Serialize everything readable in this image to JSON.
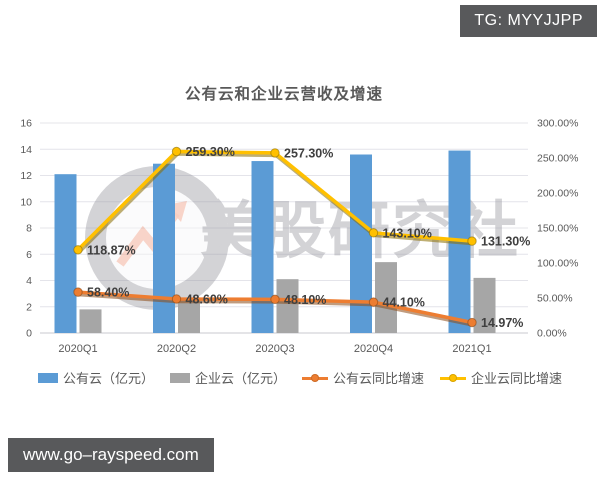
{
  "overlays": {
    "tg_badge": "TG: MYYJJPP",
    "site_badge": "www.go–rayspeed.com"
  },
  "watermark": {
    "text": "美股研究社",
    "color": "#97979f",
    "arrow_color": "#ef8a6a"
  },
  "chart_data": {
    "type": "bar",
    "subtype": "combo-bar-line-dual-axis",
    "title": "公有云和企业云营收及增速",
    "categories": [
      "2020Q1",
      "2020Q2",
      "2020Q3",
      "2020Q4",
      "2021Q1"
    ],
    "series": [
      {
        "name": "公有云（亿元）",
        "type": "bar",
        "axis": "left",
        "color": "#5b9bd5",
        "values": [
          12.1,
          12.9,
          13.1,
          13.6,
          13.9
        ]
      },
      {
        "name": "企业云（亿元）",
        "type": "bar",
        "axis": "left",
        "color": "#a6a6a6",
        "values": [
          1.8,
          2.5,
          4.1,
          5.4,
          4.2
        ]
      },
      {
        "name": "公有云同比增速",
        "type": "line",
        "axis": "right",
        "color": "#ed7d31",
        "shadow": "#8c4a16",
        "values": [
          58.4,
          48.6,
          48.1,
          44.1,
          14.97
        ],
        "labels": [
          "58.40%",
          "48.60%",
          "48.10%",
          "44.10%",
          "14.97%"
        ]
      },
      {
        "name": "企业云同比增速",
        "type": "line",
        "axis": "right",
        "color": "#ffc000",
        "shadow": "#8a6d00",
        "values": [
          118.87,
          259.3,
          257.3,
          143.1,
          131.3
        ],
        "labels": [
          "118.87%",
          "259.30%",
          "257.30%",
          "143.10%",
          "131.30%"
        ]
      }
    ],
    "left_axis": {
      "min": 0,
      "max": 16,
      "step": 2,
      "ticks": [
        "0",
        "2",
        "4",
        "6",
        "8",
        "10",
        "12",
        "14",
        "16"
      ]
    },
    "right_axis": {
      "min": 0,
      "max": 300,
      "step": 50,
      "ticks": [
        "0.00%",
        "50.00%",
        "100.00%",
        "150.00%",
        "200.00%",
        "250.00%",
        "300.00%"
      ]
    },
    "grid": true,
    "legend_position": "bottom",
    "label_color": "#3f3f3f",
    "axis_text_color": "#595959",
    "grid_color": "#e4e4ea"
  }
}
